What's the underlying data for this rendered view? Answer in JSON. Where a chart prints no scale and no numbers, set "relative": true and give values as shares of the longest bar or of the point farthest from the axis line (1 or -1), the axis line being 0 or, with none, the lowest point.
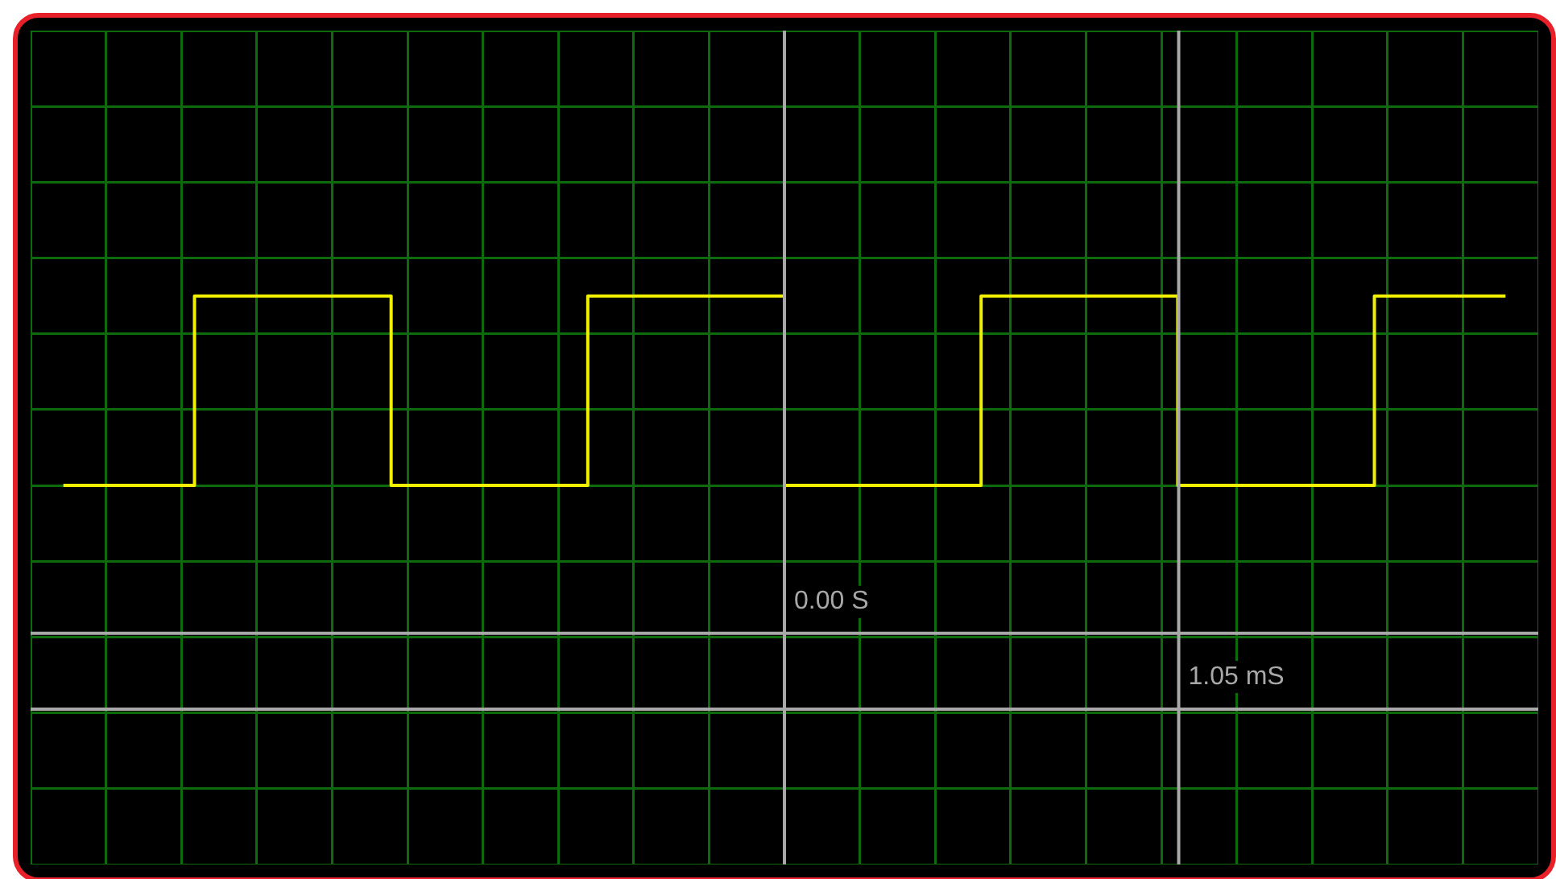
{
  "chart_data": {
    "type": "step",
    "categories": [
      null,
      null,
      null,
      null,
      null,
      null,
      null,
      null,
      null,
      null,
      null,
      null,
      null,
      null,
      null,
      null,
      null,
      null,
      null,
      null,
      null,
      null,
      null
    ],
    "series": [
      {
        "color": "#f0f000",
        "values": [
          0,
          0,
          1,
          1,
          1,
          0,
          0,
          0,
          1,
          1,
          1,
          0,
          0,
          0,
          1,
          1,
          1,
          0,
          0,
          0,
          1,
          1,
          1
        ]
      }
    ],
    "relative": true,
    "grid": true,
    "ref_lines": [
      {
        "axis": "y",
        "value": -0.78,
        "color": "#a8a8a8"
      },
      {
        "axis": "y",
        "value": -1.18,
        "color": "#a8a8a8"
      }
    ],
    "annotations": [
      "0.00 S",
      "1.05 mS"
    ]
  }
}
